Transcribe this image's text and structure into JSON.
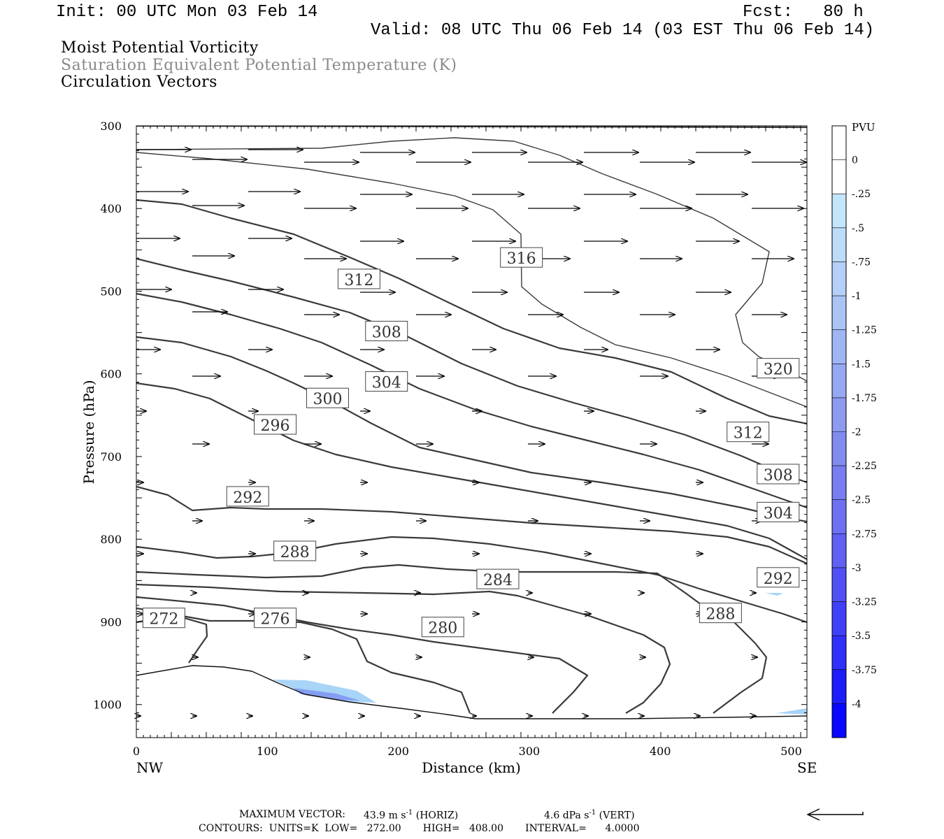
{
  "header": {
    "init": "Init: 00 UTC Mon 03 Feb 14",
    "fcst": "Fcst:   80 h",
    "valid": "Valid: 08 UTC Thu 06 Feb 14 (03 EST Thu 06 Feb 14)",
    "field1": "Moist Potential Vorticity",
    "field2": "Saturation Equivalent Potential Temperature (K)",
    "field3": "Circulation Vectors"
  },
  "footer": {
    "maxvec_label": "MAXIMUM VECTOR:",
    "maxvec_horiz": "43.9 m s",
    "maxvec_horiz_tag": "(HORIZ)",
    "maxvec_vert": "4.6 dPa s",
    "maxvec_vert_tag": "(VERT)",
    "exp": "-1",
    "contours": "CONTOURS:  UNITS=K  LOW=   272.00       HIGH=   408.00       INTERVAL=      4.0000"
  },
  "colors": {
    "contour": "#3a3a3a",
    "contour_thin": "#2a2a2a",
    "pv_fill_light": "#a8d4f8",
    "pv_fill_mid": "#7a90f0",
    "pv_fill_dark": "#5b6be8"
  },
  "chart_data": {
    "type": "cross-section",
    "xlabel": "Distance (km)",
    "ylabel": "Pressure (hPa)",
    "xlim": [
      0,
      512
    ],
    "ylim": [
      1040,
      300
    ],
    "xticks": [
      0,
      100,
      200,
      300,
      400,
      500
    ],
    "yticks": [
      300,
      400,
      500,
      600,
      700,
      800,
      900,
      1000
    ],
    "xend_left": "NW",
    "xend_right": "SE",
    "contour_labels": [
      {
        "text": "316",
        "x": 294,
        "p": 460
      },
      {
        "text": "312",
        "x": 170,
        "p": 486
      },
      {
        "text": "308",
        "x": 191,
        "p": 549
      },
      {
        "text": "304",
        "x": 191,
        "p": 610
      },
      {
        "text": "300",
        "x": 146,
        "p": 630
      },
      {
        "text": "296",
        "x": 106,
        "p": 662
      },
      {
        "text": "320",
        "x": 490,
        "p": 594
      },
      {
        "text": "312",
        "x": 467,
        "p": 671
      },
      {
        "text": "308",
        "x": 490,
        "p": 722
      },
      {
        "text": "304",
        "x": 490,
        "p": 768
      },
      {
        "text": "292",
        "x": 85,
        "p": 749
      },
      {
        "text": "288",
        "x": 121,
        "p": 815
      },
      {
        "text": "284",
        "x": 276,
        "p": 849
      },
      {
        "text": "292",
        "x": 490,
        "p": 847
      },
      {
        "text": "272",
        "x": 21,
        "p": 896
      },
      {
        "text": "276",
        "x": 106,
        "p": 896
      },
      {
        "text": "280",
        "x": 234,
        "p": 907
      },
      {
        "text": "288",
        "x": 446,
        "p": 890
      }
    ],
    "colorbar": {
      "title": "PVU",
      "labels": [
        "0",
        "-.25",
        "-.5",
        "-.75",
        "-1",
        "-1.25",
        "-1.5",
        "-1.75",
        "-2",
        "-2.25",
        "-2.5",
        "-2.75",
        "-3",
        "-3.25",
        "-3.5",
        "-3.75",
        "-4"
      ],
      "colors": [
        "#ffffff",
        "#ffffff",
        "#c4e6fc",
        "#bcdcfa",
        "#b4d0f8",
        "#aac4f6",
        "#a0b6f4",
        "#96a8f2",
        "#8c9af0",
        "#828cee",
        "#787ef0",
        "#6e70f2",
        "#6060f4",
        "#5050f6",
        "#4040f8",
        "#3030fa",
        "#1c1cfc",
        "#0808fe"
      ]
    }
  }
}
